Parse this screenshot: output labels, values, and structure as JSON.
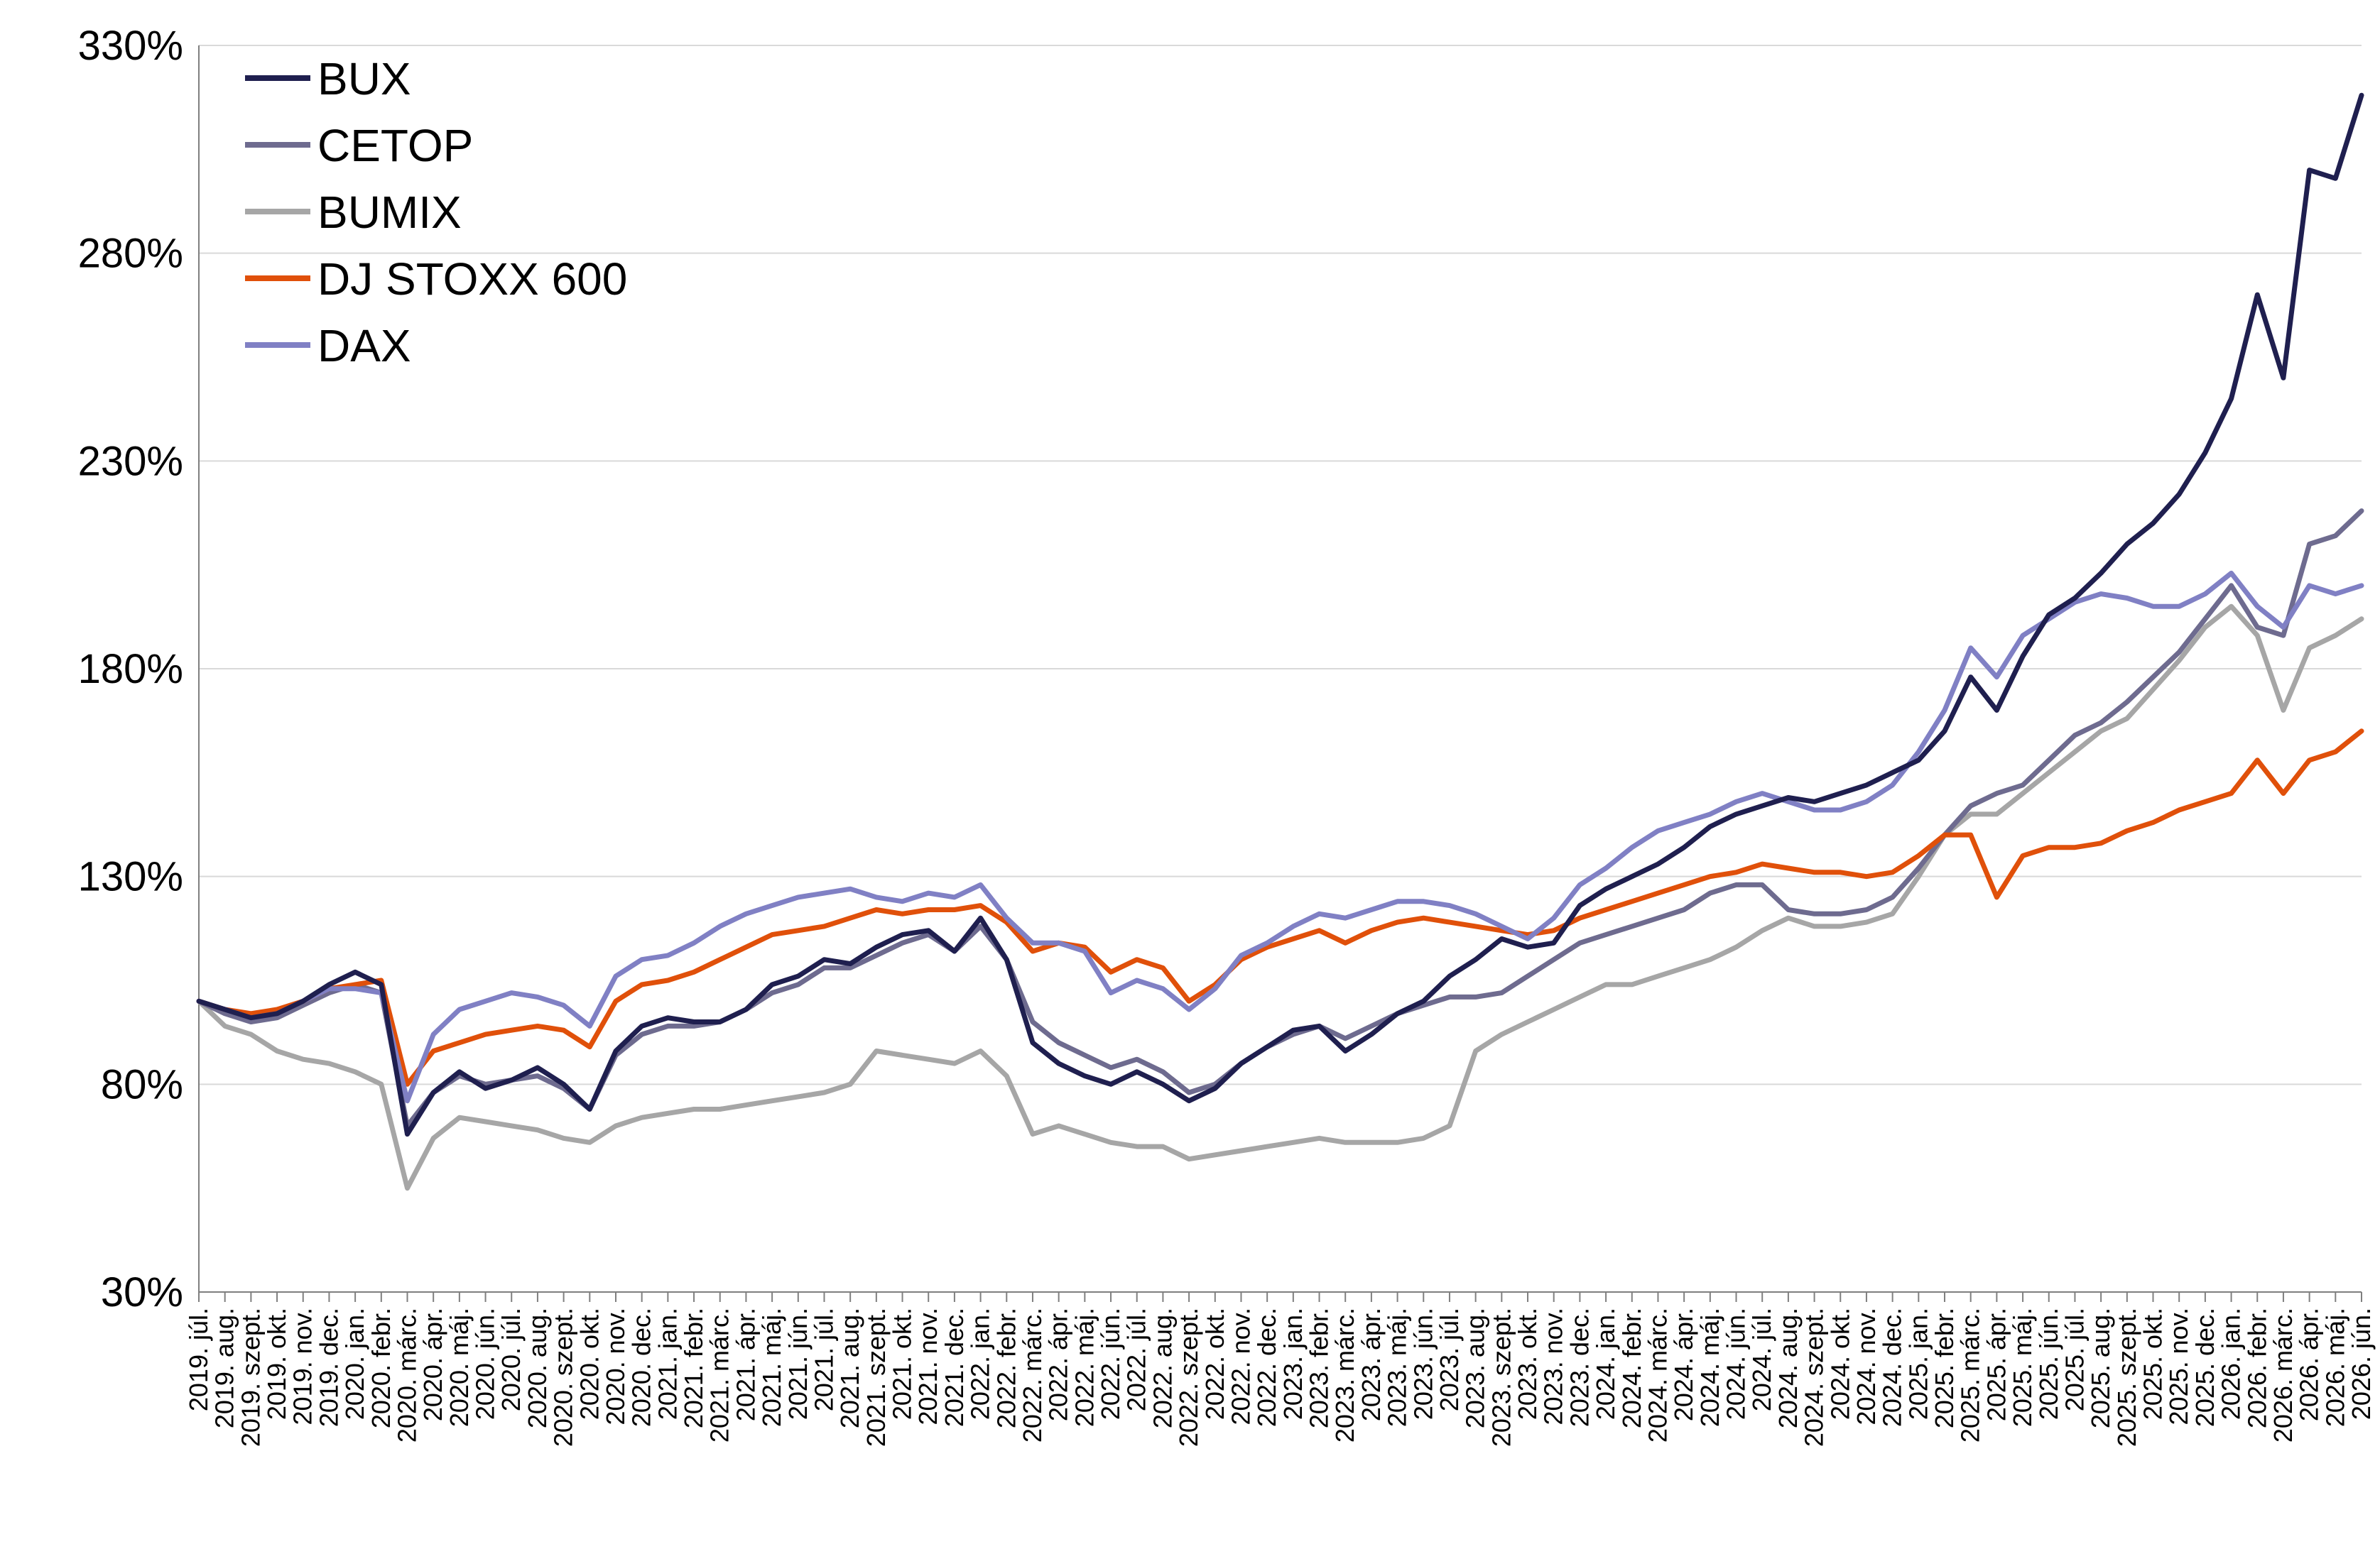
{
  "chart_data": {
    "type": "line",
    "title": "",
    "xlabel": "",
    "ylabel": "",
    "ylim": [
      30,
      330
    ],
    "y_ticks": [
      "330%",
      "280%",
      "230%",
      "180%",
      "130%",
      "80%",
      "30%"
    ],
    "y_tick_values": [
      330,
      280,
      230,
      180,
      130,
      80,
      30
    ],
    "grid": "horizontal",
    "legend_position": "top-left",
    "x": [
      "2019. júl.",
      "2019. aug.",
      "2019. szept.",
      "2019. okt.",
      "2019. nov.",
      "2019. dec.",
      "2020. jan.",
      "2020. febr.",
      "2020. márc.",
      "2020. ápr.",
      "2020. máj.",
      "2020. jún.",
      "2020. júl.",
      "2020. aug.",
      "2020. szept.",
      "2020. okt.",
      "2020. nov.",
      "2020. dec.",
      "2021. jan.",
      "2021. febr.",
      "2021. márc.",
      "2021. ápr.",
      "2021. máj.",
      "2021. jún.",
      "2021. júl.",
      "2021. aug.",
      "2021. szept.",
      "2021. okt.",
      "2021. nov.",
      "2021. dec.",
      "2022. jan.",
      "2022. febr.",
      "2022. márc.",
      "2022. ápr.",
      "2022. máj.",
      "2022. jún.",
      "2022. júl.",
      "2022. aug.",
      "2022. szept.",
      "2022. okt.",
      "2022. nov.",
      "2022. dec.",
      "2023. jan.",
      "2023. febr.",
      "2023. márc.",
      "2023. ápr.",
      "2023. máj.",
      "2023. jún.",
      "2023. júl.",
      "2023. aug.",
      "2023. szept.",
      "2023. okt.",
      "2023. nov.",
      "2023. dec.",
      "2024. jan.",
      "2024. febr.",
      "2024. márc.",
      "2024. ápr.",
      "2024. máj.",
      "2024. jún.",
      "2024. júl.",
      "2024. aug.",
      "2024. szept.",
      "2024. okt.",
      "2024. nov.",
      "2024. dec.",
      "2025. jan.",
      "2025. febr.",
      "2025. márc.",
      "2025. ápr.",
      "2025. máj.",
      "2025. jún.",
      "2025. júl.",
      "2025. aug.",
      "2025. szept.",
      "2025. okt.",
      "2025. nov.",
      "2025. dec.",
      "2026. jan.",
      "2026. febr.",
      "2026. márc.",
      "2026. ápr.",
      "2026. máj.",
      "2026. jún."
    ],
    "series": [
      {
        "name": "BUX",
        "color": "#1f1f4f",
        "values": [
          100,
          98,
          96,
          97,
          100,
          104,
          107,
          104,
          68,
          78,
          83,
          79,
          81,
          84,
          80,
          74,
          88,
          94,
          96,
          95,
          95,
          98,
          104,
          106,
          110,
          109,
          113,
          116,
          117,
          112,
          120,
          110,
          90,
          85,
          82,
          80,
          83,
          80,
          76,
          79,
          85,
          89,
          93,
          94,
          88,
          92,
          97,
          100,
          106,
          110,
          115,
          113,
          114,
          123,
          127,
          130,
          133,
          137,
          142,
          145,
          147,
          149,
          148,
          150,
          152,
          155,
          158,
          165,
          178,
          170,
          183,
          193,
          197,
          203,
          210,
          215,
          222,
          232,
          245,
          270,
          250,
          300,
          298,
          318
        ]
      },
      {
        "name": "CETOP",
        "color": "#6e6b8f",
        "values": [
          100,
          97,
          95,
          96,
          99,
          102,
          104,
          102,
          70,
          78,
          82,
          80,
          81,
          82,
          79,
          74,
          87,
          92,
          94,
          94,
          95,
          98,
          102,
          104,
          108,
          108,
          111,
          114,
          116,
          112,
          118,
          110,
          95,
          90,
          87,
          84,
          86,
          83,
          78,
          80,
          85,
          89,
          92,
          94,
          91,
          94,
          97,
          99,
          101,
          101,
          102,
          106,
          110,
          114,
          116,
          118,
          120,
          122,
          126,
          128,
          128,
          122,
          121,
          121,
          122,
          125,
          132,
          140,
          147,
          150,
          152,
          158,
          164,
          167,
          172,
          178,
          184,
          192,
          200,
          190,
          188,
          210,
          212,
          218
        ]
      },
      {
        "name": "BUMIX",
        "color": "#a6a6a6",
        "values": [
          100,
          94,
          92,
          88,
          86,
          85,
          83,
          80,
          55,
          67,
          72,
          71,
          70,
          69,
          67,
          66,
          70,
          72,
          73,
          74,
          74,
          75,
          76,
          77,
          78,
          80,
          88,
          87,
          86,
          85,
          88,
          82,
          68,
          70,
          68,
          66,
          65,
          65,
          62,
          63,
          64,
          65,
          66,
          67,
          66,
          66,
          66,
          67,
          70,
          88,
          92,
          95,
          98,
          101,
          104,
          104,
          106,
          108,
          110,
          113,
          117,
          120,
          118,
          118,
          119,
          121,
          130,
          140,
          145,
          145,
          150,
          155,
          160,
          165,
          168,
          175,
          182,
          190,
          195,
          188,
          170,
          185,
          188,
          192
        ]
      },
      {
        "name": "DJ STOXX 600",
        "color": "#e0500a",
        "values": [
          100,
          98,
          97,
          98,
          100,
          103,
          104,
          105,
          80,
          88,
          90,
          92,
          93,
          94,
          93,
          89,
          100,
          104,
          105,
          107,
          110,
          113,
          116,
          117,
          118,
          120,
          122,
          121,
          122,
          122,
          123,
          119,
          112,
          114,
          113,
          107,
          110,
          108,
          100,
          104,
          110,
          113,
          115,
          117,
          114,
          117,
          119,
          120,
          119,
          118,
          117,
          116,
          117,
          120,
          122,
          124,
          126,
          128,
          130,
          131,
          133,
          132,
          131,
          131,
          130,
          131,
          135,
          140,
          140,
          125,
          135,
          137,
          137,
          138,
          141,
          143,
          146,
          148,
          150,
          158,
          150,
          158,
          160,
          165
        ]
      },
      {
        "name": "DAX",
        "color": "#8080c4",
        "values": [
          100,
          98,
          96,
          97,
          100,
          103,
          103,
          102,
          76,
          92,
          98,
          100,
          102,
          101,
          99,
          94,
          106,
          110,
          111,
          114,
          118,
          121,
          123,
          125,
          126,
          127,
          125,
          124,
          126,
          125,
          128,
          120,
          114,
          114,
          112,
          102,
          105,
          103,
          98,
          103,
          111,
          114,
          118,
          121,
          120,
          122,
          124,
          124,
          123,
          121,
          118,
          115,
          120,
          128,
          132,
          137,
          141,
          143,
          145,
          148,
          150,
          148,
          146,
          146,
          148,
          152,
          160,
          170,
          185,
          178,
          188,
          192,
          196,
          198,
          197,
          195,
          195,
          198,
          203,
          195,
          190,
          200,
          198,
          200
        ]
      }
    ]
  }
}
